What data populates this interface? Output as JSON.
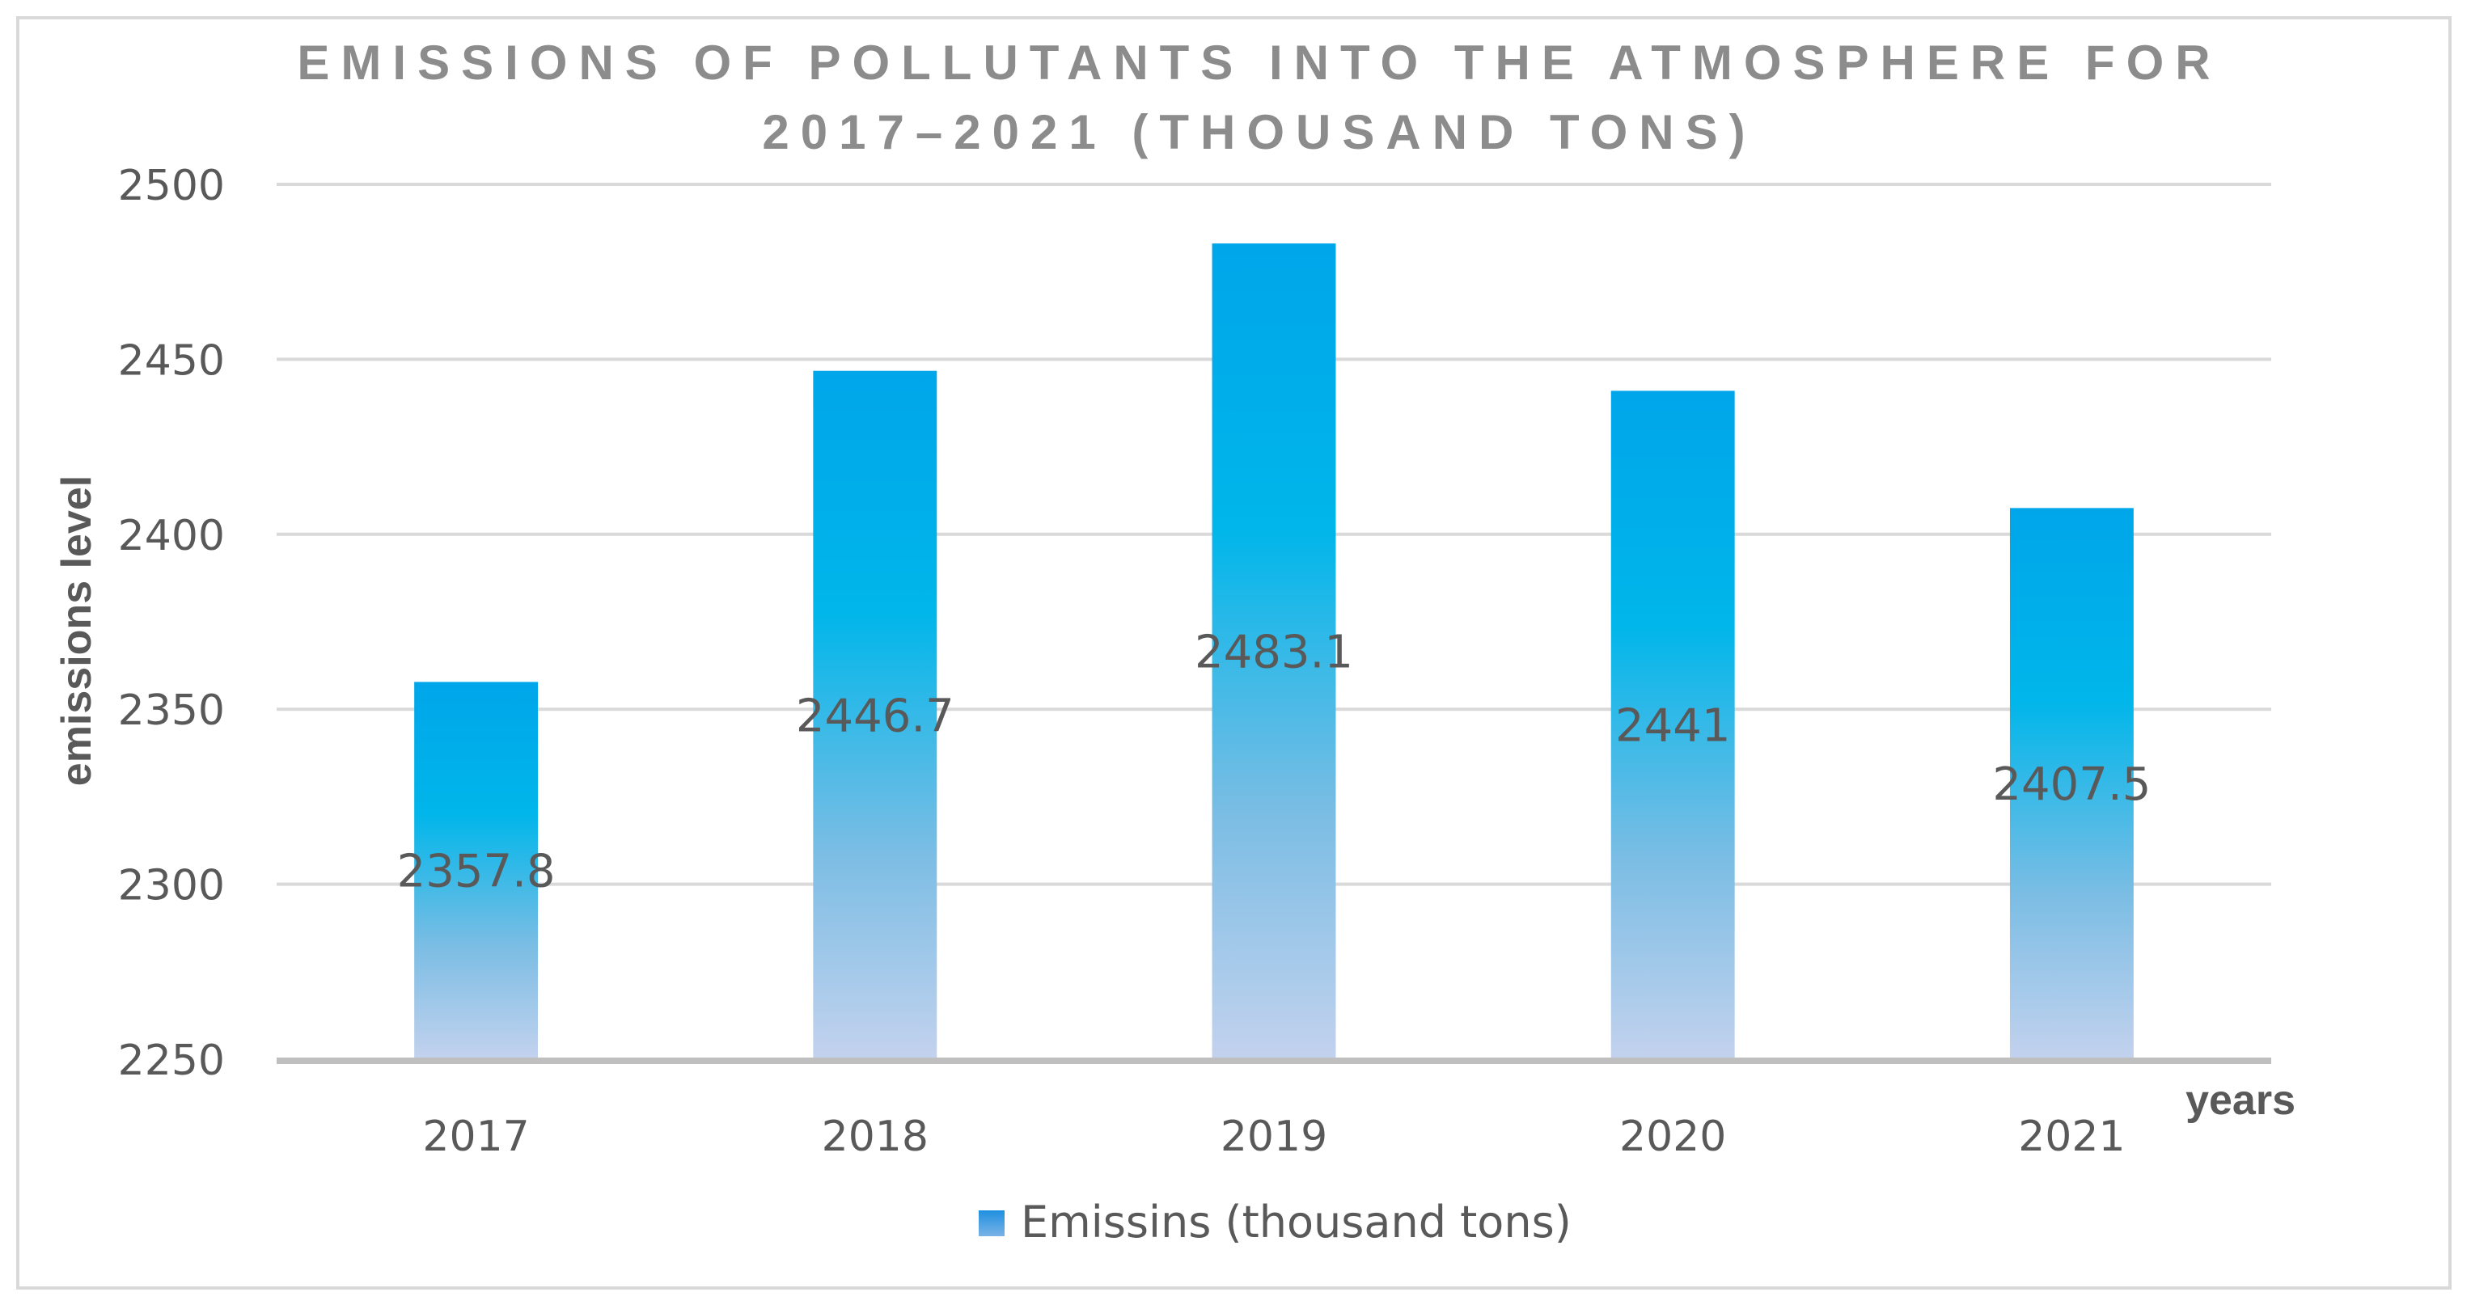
{
  "chart_data": {
    "type": "bar",
    "title_line1": "EMISSIONS OF POLLUTANTS INTO THE ATMOSPHERE FOR",
    "title_line2": "2017–2021 (THOUSAND TONS)",
    "xlabel": "years",
    "ylabel": "emissions level",
    "categories": [
      "2017",
      "2018",
      "2019",
      "2020",
      "2021"
    ],
    "series": [
      {
        "name": "Emissins (thousand tons)",
        "values": [
          2357.8,
          2446.7,
          2483.1,
          2441,
          2407.5
        ],
        "data_labels": [
          "2357.8",
          "2446.7",
          "2483.1",
          "2441",
          "2407.5"
        ]
      }
    ],
    "ylim": [
      2250,
      2500
    ],
    "yticks": [
      "2250",
      "2300",
      "2350",
      "2400",
      "2450",
      "2500"
    ],
    "grid": true,
    "legend_position": "bottom",
    "colors": {
      "bar_top": "#00a8ec",
      "bar_mid": "#00b4e8",
      "bar_bottom": "#b7c9ea",
      "gridline": "#d9d9d9",
      "axis": "#bfbfbf",
      "text": "#595959",
      "title": "#8c8c8c"
    }
  }
}
